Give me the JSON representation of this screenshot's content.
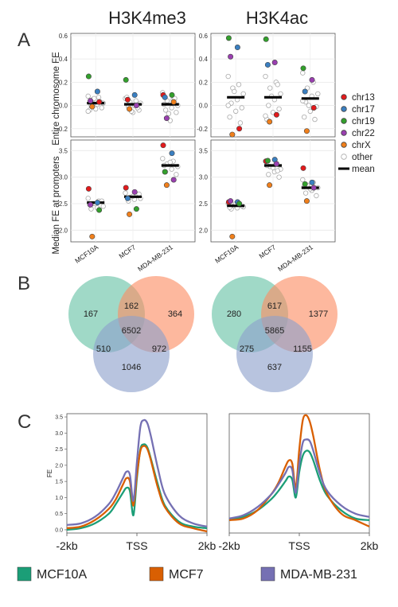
{
  "panel_titles": [
    "H3K4me3",
    "H3K4ac"
  ],
  "panel_letters": [
    "A",
    "B",
    "C"
  ],
  "colors": {
    "chr13": "#e31a1c",
    "chr17": "#3a7fc1",
    "chr19": "#33a02c",
    "chr22": "#9a3fb0",
    "chrX": "#f07f1b",
    "other": "#ffffff",
    "mean": "#000000",
    "MCF10A": "#1b9e77",
    "MCF7": "#d95f02",
    "MDA-MB-231": "#7570b3",
    "venn_a": "#66c2a5",
    "venn_b": "#fc8d62",
    "venn_c": "#8da0cb"
  },
  "legend_a": {
    "items": [
      {
        "label": "chr13",
        "key": "chr13"
      },
      {
        "label": "chr17",
        "key": "chr17"
      },
      {
        "label": "chr19",
        "key": "chr19"
      },
      {
        "label": "chr22",
        "key": "chr22"
      },
      {
        "label": "chrX",
        "key": "chrX"
      },
      {
        "label": "other",
        "key": "other"
      }
    ],
    "mean_label": "mean"
  },
  "legend_c": [
    "MCF10A",
    "MCF7",
    "MDA-MB-231"
  ],
  "chart_data": [
    {
      "type": "scatter",
      "id": "h3k4me3-entire",
      "ylabel": "Entire chromosome FE",
      "categories": [
        "MCF10A",
        "MCF7",
        "MDA-MB-231"
      ],
      "ylim": [
        -0.27,
        0.62
      ],
      "yticks": [
        "-0.2",
        "0.0",
        "0.2",
        "0.4",
        "0.6"
      ],
      "ytick_values": [
        -0.2,
        0.0,
        0.2,
        0.4,
        0.6
      ],
      "means": [
        0.02,
        0.01,
        0.01
      ],
      "highlighted": [
        {
          "cat": 0,
          "chr": "chr19",
          "y": 0.25
        },
        {
          "cat": 0,
          "chr": "chr17",
          "y": 0.12
        },
        {
          "cat": 0,
          "chr": "chr22",
          "y": 0.04
        },
        {
          "cat": 0,
          "chr": "chr13",
          "y": 0.03
        },
        {
          "cat": 0,
          "chr": "chrX",
          "y": -0.01
        },
        {
          "cat": 1,
          "chr": "chr19",
          "y": 0.22
        },
        {
          "cat": 1,
          "chr": "chr17",
          "y": 0.09
        },
        {
          "cat": 1,
          "chr": "chr13",
          "y": 0.05
        },
        {
          "cat": 1,
          "chr": "chr22",
          "y": 0.0
        },
        {
          "cat": 1,
          "chr": "chrX",
          "y": -0.03
        },
        {
          "cat": 2,
          "chr": "chr13",
          "y": 0.09
        },
        {
          "cat": 2,
          "chr": "chr19",
          "y": 0.09
        },
        {
          "cat": 2,
          "chr": "chr17",
          "y": 0.07
        },
        {
          "cat": 2,
          "chr": "chrX",
          "y": 0.03
        },
        {
          "cat": 2,
          "chr": "chr22",
          "y": -0.11
        }
      ],
      "other": [
        [
          0.08,
          0.07,
          0.05,
          0.02,
          0.01,
          0.0,
          -0.02,
          -0.03,
          -0.04,
          0.03,
          0.06,
          -0.05
        ],
        [
          0.06,
          0.04,
          0.03,
          0.02,
          0.0,
          -0.01,
          -0.04,
          -0.06,
          0.07,
          -0.02,
          -0.05
        ],
        [
          0.11,
          0.05,
          0.04,
          0.0,
          -0.02,
          -0.04,
          -0.06,
          -0.13,
          0.01,
          0.06,
          -0.07
        ]
      ]
    },
    {
      "type": "scatter",
      "id": "h3k4ac-entire",
      "ylabel": "",
      "categories": [
        "MCF10A",
        "MCF7",
        "MDA-MB-231"
      ],
      "ylim": [
        -0.27,
        0.62
      ],
      "yticks": [
        "-0.2",
        "0.0",
        "0.2",
        "0.4",
        "0.6"
      ],
      "ytick_values": [
        -0.2,
        0.0,
        0.2,
        0.4,
        0.6
      ],
      "means": [
        0.07,
        0.07,
        0.06
      ],
      "highlighted": [
        {
          "cat": 0,
          "chr": "chr19",
          "y": 0.58
        },
        {
          "cat": 0,
          "chr": "chr17",
          "y": 0.5
        },
        {
          "cat": 0,
          "chr": "chr22",
          "y": 0.42
        },
        {
          "cat": 0,
          "chr": "chr13",
          "y": -0.2
        },
        {
          "cat": 0,
          "chr": "chrX",
          "y": -0.25
        },
        {
          "cat": 1,
          "chr": "chr19",
          "y": 0.57
        },
        {
          "cat": 1,
          "chr": "chr22",
          "y": 0.37
        },
        {
          "cat": 1,
          "chr": "chr17",
          "y": 0.35
        },
        {
          "cat": 1,
          "chr": "chr13",
          "y": -0.08
        },
        {
          "cat": 1,
          "chr": "chrX",
          "y": -0.14
        },
        {
          "cat": 2,
          "chr": "chr19",
          "y": 0.32
        },
        {
          "cat": 2,
          "chr": "chr22",
          "y": 0.22
        },
        {
          "cat": 2,
          "chr": "chr17",
          "y": 0.12
        },
        {
          "cat": 2,
          "chr": "chr13",
          "y": -0.02
        },
        {
          "cat": 2,
          "chr": "chrX",
          "y": -0.22
        }
      ],
      "other": [
        [
          0.25,
          0.18,
          0.15,
          0.1,
          0.05,
          0.02,
          -0.02,
          -0.05,
          -0.1,
          -0.15,
          0.12,
          0.0
        ],
        [
          0.25,
          0.2,
          0.15,
          0.1,
          0.05,
          0.0,
          -0.03,
          -0.06,
          -0.12,
          0.18,
          0.08,
          -0.09
        ],
        [
          0.28,
          0.2,
          0.15,
          0.1,
          0.08,
          0.03,
          -0.01,
          -0.05,
          -0.1,
          -0.12,
          0.0,
          0.04
        ]
      ]
    },
    {
      "type": "scatter",
      "id": "h3k4me3-promoters",
      "ylabel": "Median FE at promoters",
      "categories": [
        "MCF10A",
        "MCF7",
        "MDA-MB-231"
      ],
      "ylim": [
        1.78,
        3.7
      ],
      "yticks": [
        "2.0",
        "2.5",
        "3.0",
        "3.5"
      ],
      "ytick_values": [
        2.0,
        2.5,
        3.0,
        3.5
      ],
      "means": [
        2.52,
        2.63,
        3.22
      ],
      "highlighted": [
        {
          "cat": 0,
          "chr": "chr13",
          "y": 2.78
        },
        {
          "cat": 0,
          "chr": "chr17",
          "y": 2.52
        },
        {
          "cat": 0,
          "chr": "chr22",
          "y": 2.48
        },
        {
          "cat": 0,
          "chr": "chr19",
          "y": 2.38
        },
        {
          "cat": 0,
          "chr": "chrX",
          "y": 1.88
        },
        {
          "cat": 1,
          "chr": "chr13",
          "y": 2.8
        },
        {
          "cat": 1,
          "chr": "chr22",
          "y": 2.72
        },
        {
          "cat": 1,
          "chr": "chr17",
          "y": 2.6
        },
        {
          "cat": 1,
          "chr": "chr19",
          "y": 2.4
        },
        {
          "cat": 1,
          "chr": "chrX",
          "y": 2.3
        },
        {
          "cat": 2,
          "chr": "chr13",
          "y": 3.6
        },
        {
          "cat": 2,
          "chr": "chr17",
          "y": 3.45
        },
        {
          "cat": 2,
          "chr": "chr19",
          "y": 3.1
        },
        {
          "cat": 2,
          "chr": "chr22",
          "y": 2.95
        },
        {
          "cat": 2,
          "chr": "chrX",
          "y": 2.85
        }
      ],
      "other": [
        [
          2.6,
          2.55,
          2.5,
          2.45,
          2.42,
          2.4,
          2.55,
          2.5,
          2.48
        ],
        [
          2.7,
          2.65,
          2.62,
          2.6,
          2.58,
          2.55,
          2.68,
          2.64
        ],
        [
          3.35,
          3.3,
          3.25,
          3.2,
          3.15,
          3.1,
          3.05,
          3.28,
          3.22
        ]
      ]
    },
    {
      "type": "scatter",
      "id": "h3k4ac-promoters",
      "ylabel": "",
      "categories": [
        "MCF10A",
        "MCF7",
        "MDA-MB-231"
      ],
      "ylim": [
        1.78,
        3.7
      ],
      "yticks": [
        "2.0",
        "2.5",
        "3.0",
        "3.5"
      ],
      "ytick_values": [
        2.0,
        2.5,
        3.0,
        3.5
      ],
      "means": [
        2.46,
        3.22,
        2.8
      ],
      "highlighted": [
        {
          "cat": 0,
          "chr": "chr13",
          "y": 2.53
        },
        {
          "cat": 0,
          "chr": "chr17",
          "y": 2.53
        },
        {
          "cat": 0,
          "chr": "chr22",
          "y": 2.55
        },
        {
          "cat": 0,
          "chr": "chr19",
          "y": 2.5
        },
        {
          "cat": 0,
          "chr": "chrX",
          "y": 1.88
        },
        {
          "cat": 1,
          "chr": "chr13",
          "y": 3.3
        },
        {
          "cat": 1,
          "chr": "chr17",
          "y": 3.33
        },
        {
          "cat": 1,
          "chr": "chr19",
          "y": 3.31
        },
        {
          "cat": 1,
          "chr": "chr22",
          "y": 3.25
        },
        {
          "cat": 1,
          "chr": "chrX",
          "y": 2.85
        },
        {
          "cat": 2,
          "chr": "chr13",
          "y": 3.17
        },
        {
          "cat": 2,
          "chr": "chr17",
          "y": 2.9
        },
        {
          "cat": 2,
          "chr": "chr19",
          "y": 2.87
        },
        {
          "cat": 2,
          "chr": "chr22",
          "y": 2.8
        },
        {
          "cat": 2,
          "chr": "chrX",
          "y": 2.55
        }
      ],
      "other": [
        [
          2.5,
          2.48,
          2.45,
          2.44,
          2.42,
          2.4,
          2.46,
          2.5,
          2.43
        ],
        [
          3.3,
          3.25,
          3.2,
          3.15,
          3.1,
          3.05,
          3.0,
          3.18,
          3.22,
          3.12
        ],
        [
          2.95,
          2.9,
          2.85,
          2.8,
          2.75,
          2.7,
          2.65,
          2.78,
          2.82
        ]
      ]
    },
    {
      "type": "venn",
      "id": "h3k4me3-venn",
      "sets": [
        "MCF10A",
        "MCF7",
        "MDA-MB-231"
      ],
      "regions": {
        "a": "167",
        "b": "364",
        "c": "1046",
        "ab": "162",
        "ac": "510",
        "bc": "972",
        "abc": "6502"
      }
    },
    {
      "type": "venn",
      "id": "h3k4ac-venn",
      "sets": [
        "MCF10A",
        "MCF7",
        "MDA-MB-231"
      ],
      "regions": {
        "a": "280",
        "b": "1377",
        "c": "637",
        "ab": "617",
        "ac": "275",
        "bc": "1155",
        "abc": "5865"
      }
    },
    {
      "type": "line",
      "id": "h3k4me3-profile",
      "ylabel": "FE",
      "x": [
        -2000,
        -1600,
        -1200,
        -800,
        -600,
        -400,
        -300,
        -200,
        -100,
        0,
        100,
        200,
        300,
        400,
        600,
        800,
        1200,
        1600,
        2000
      ],
      "xtick_labels": [
        "-2kb",
        "TSS",
        "2kb"
      ],
      "xtick_values": [
        -2000,
        0,
        2000
      ],
      "ylim": [
        -0.1,
        3.6
      ],
      "yticks": [
        "0.0",
        "0.5",
        "1.0",
        "1.5",
        "2.0",
        "2.5",
        "3.0",
        "3.5"
      ],
      "ytick_values": [
        0.0,
        0.5,
        1.0,
        1.5,
        2.0,
        2.5,
        3.0,
        3.5
      ],
      "series": [
        {
          "name": "MCF10A",
          "key": "MCF10A",
          "values": [
            0.0,
            0.05,
            0.2,
            0.5,
            0.8,
            1.15,
            1.3,
            1.2,
            0.45,
            1.6,
            2.5,
            2.65,
            2.55,
            2.2,
            1.4,
            0.75,
            0.25,
            0.1,
            0.05
          ]
        },
        {
          "name": "MCF7",
          "key": "MCF7",
          "values": [
            0.05,
            0.1,
            0.3,
            0.65,
            0.95,
            1.4,
            1.6,
            1.5,
            0.75,
            1.7,
            2.45,
            2.6,
            2.5,
            2.15,
            1.3,
            0.7,
            0.2,
            0.05,
            -0.05
          ]
        },
        {
          "name": "MDA-MB-231",
          "key": "MDA-MB-231",
          "values": [
            0.15,
            0.2,
            0.4,
            0.8,
            1.15,
            1.6,
            1.8,
            1.7,
            0.9,
            2.1,
            3.2,
            3.4,
            3.3,
            2.9,
            1.9,
            1.1,
            0.45,
            0.2,
            0.1
          ]
        }
      ]
    },
    {
      "type": "line",
      "id": "h3k4ac-profile",
      "x": [
        -2000,
        -1600,
        -1200,
        -800,
        -600,
        -400,
        -300,
        -200,
        -100,
        0,
        100,
        200,
        300,
        400,
        600,
        800,
        1200,
        1600,
        2000
      ],
      "xtick_labels": [
        "-2kb",
        "TSS",
        "2kb"
      ],
      "xtick_values": [
        -2000,
        0,
        2000
      ],
      "ylim": [
        -0.1,
        3.6
      ],
      "series": [
        {
          "name": "MCF10A",
          "key": "MCF10A",
          "values": [
            0.3,
            0.4,
            0.6,
            0.95,
            1.2,
            1.5,
            1.65,
            1.55,
            1.0,
            1.8,
            2.3,
            2.45,
            2.4,
            2.15,
            1.5,
            1.05,
            0.6,
            0.35,
            0.3
          ]
        },
        {
          "name": "MCF7",
          "key": "MCF7",
          "values": [
            0.3,
            0.35,
            0.6,
            1.1,
            1.45,
            1.95,
            2.15,
            2.05,
            1.3,
            2.5,
            3.4,
            3.55,
            3.35,
            2.9,
            1.8,
            1.1,
            0.5,
            0.3,
            0.1
          ]
        },
        {
          "name": "MDA-MB-231",
          "key": "MDA-MB-231",
          "values": [
            0.35,
            0.45,
            0.7,
            1.1,
            1.4,
            1.75,
            1.95,
            1.85,
            1.15,
            2.05,
            2.7,
            2.8,
            2.75,
            2.45,
            1.7,
            1.2,
            0.75,
            0.5,
            0.4
          ]
        }
      ]
    }
  ]
}
